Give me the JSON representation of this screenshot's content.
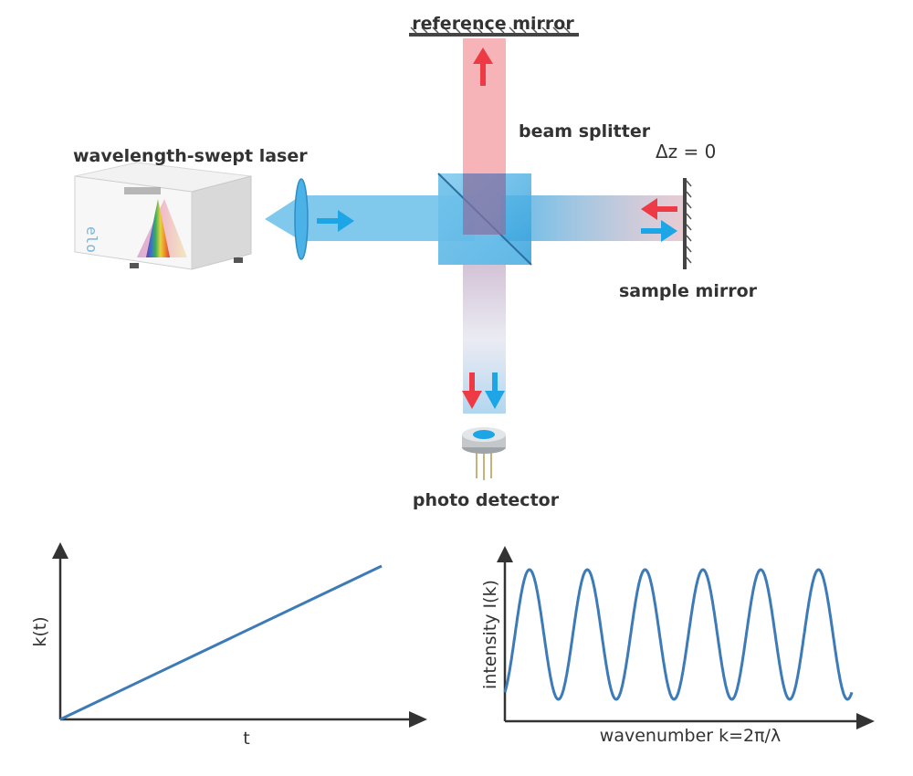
{
  "labels": {
    "reference_mirror": "reference mirror",
    "beam_splitter": "beam splitter",
    "delta_z": "Δz = 0",
    "laser": "wavelength-swept laser",
    "sample_mirror": "sample mirror",
    "photo_detector": "photo detector"
  },
  "colors": {
    "beam_blue": "#4ab2e6",
    "beam_red": "#f08088",
    "arrow_red": "#ee3a45",
    "arrow_blue": "#1ea5e6",
    "curve": "#3d7ab8",
    "axis": "#333333"
  },
  "chart_data": [
    {
      "type": "line",
      "xlabel": "t",
      "ylabel": "k(t)",
      "description_free": true,
      "series": [
        {
          "x": [
            0,
            1
          ],
          "values": [
            0,
            1
          ]
        }
      ]
    },
    {
      "type": "line",
      "xlabel": "wavenumber k=2π/λ",
      "ylabel": "intensity I(k)",
      "cycles": 6,
      "series": [
        {
          "x_range": [
            0,
            6
          ],
          "values_range": [
            0,
            1
          ]
        }
      ]
    }
  ]
}
